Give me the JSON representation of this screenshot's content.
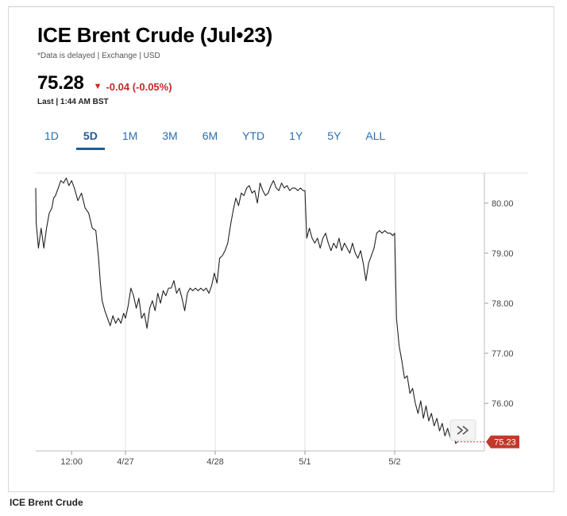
{
  "instrument": {
    "title": "ICE Brent Crude (Jul•23)",
    "meta": "*Data is delayed | Exchange | USD",
    "price": "75.28",
    "change": "-0.04 (-0.05%)",
    "change_color": "#c62828",
    "change_icon": "triangle-down-icon",
    "last_updated": "Last | 1:44 AM BST"
  },
  "tabs": [
    {
      "label": "1D",
      "active": false
    },
    {
      "label": "5D",
      "active": true
    },
    {
      "label": "1M",
      "active": false
    },
    {
      "label": "3M",
      "active": false
    },
    {
      "label": "6M",
      "active": false
    },
    {
      "label": "YTD",
      "active": false
    },
    {
      "label": "1Y",
      "active": false
    },
    {
      "label": "5Y",
      "active": false
    },
    {
      "label": "ALL",
      "active": false
    }
  ],
  "chart_data": {
    "type": "line",
    "title": "",
    "xlabel": "",
    "ylabel": "",
    "x_domain": [
      0,
      5
    ],
    "ylim": [
      75.05,
      80.6
    ],
    "y_ticks": [
      76.0,
      77.0,
      78.0,
      79.0,
      80.0
    ],
    "y_tick_labels": [
      "76.00",
      "77.00",
      "78.00",
      "79.00",
      "80.00"
    ],
    "x_ticks": [
      {
        "x": 0.4,
        "label": "12:00"
      },
      {
        "x": 1.0,
        "label": "4/27"
      },
      {
        "x": 2.0,
        "label": "4/28"
      },
      {
        "x": 3.0,
        "label": "5/1"
      },
      {
        "x": 4.0,
        "label": "5/2"
      }
    ],
    "grid": "vertical",
    "line_color": "#222222",
    "current_value": 75.23,
    "current_label": "75.23",
    "current_label_color": "#c0392b",
    "scroll_icon": "double-chevron-right-icon",
    "series": [
      {
        "points": [
          [
            0.0,
            80.3
          ],
          [
            0.005,
            79.6
          ],
          [
            0.03,
            79.1
          ],
          [
            0.06,
            79.5
          ],
          [
            0.09,
            79.1
          ],
          [
            0.12,
            79.5
          ],
          [
            0.15,
            79.8
          ],
          [
            0.18,
            79.9
          ],
          [
            0.2,
            80.1
          ],
          [
            0.22,
            80.15
          ],
          [
            0.25,
            80.3
          ],
          [
            0.28,
            80.45
          ],
          [
            0.31,
            80.4
          ],
          [
            0.34,
            80.5
          ],
          [
            0.37,
            80.35
          ],
          [
            0.4,
            80.45
          ],
          [
            0.43,
            80.3
          ],
          [
            0.47,
            80.05
          ],
          [
            0.51,
            80.2
          ],
          [
            0.55,
            79.9
          ],
          [
            0.59,
            79.8
          ],
          [
            0.63,
            79.5
          ],
          [
            0.67,
            79.45
          ],
          [
            0.7,
            78.9
          ],
          [
            0.72,
            78.4
          ],
          [
            0.74,
            78.05
          ],
          [
            0.77,
            77.85
          ],
          [
            0.8,
            77.7
          ],
          [
            0.83,
            77.55
          ],
          [
            0.86,
            77.75
          ],
          [
            0.89,
            77.6
          ],
          [
            0.92,
            77.7
          ],
          [
            0.95,
            77.6
          ],
          [
            0.98,
            77.8
          ],
          [
            1.0,
            77.7
          ],
          [
            1.03,
            77.95
          ],
          [
            1.06,
            78.3
          ],
          [
            1.09,
            78.15
          ],
          [
            1.12,
            77.9
          ],
          [
            1.15,
            78.1
          ],
          [
            1.18,
            77.7
          ],
          [
            1.21,
            77.8
          ],
          [
            1.24,
            77.5
          ],
          [
            1.27,
            77.9
          ],
          [
            1.3,
            78.05
          ],
          [
            1.33,
            77.85
          ],
          [
            1.36,
            78.2
          ],
          [
            1.39,
            78.0
          ],
          [
            1.42,
            78.25
          ],
          [
            1.45,
            78.15
          ],
          [
            1.48,
            78.3
          ],
          [
            1.51,
            78.3
          ],
          [
            1.54,
            78.45
          ],
          [
            1.57,
            78.2
          ],
          [
            1.6,
            78.3
          ],
          [
            1.63,
            78.1
          ],
          [
            1.66,
            77.85
          ],
          [
            1.69,
            78.2
          ],
          [
            1.72,
            78.3
          ],
          [
            1.75,
            78.25
          ],
          [
            1.78,
            78.3
          ],
          [
            1.81,
            78.25
          ],
          [
            1.84,
            78.3
          ],
          [
            1.87,
            78.25
          ],
          [
            1.9,
            78.3
          ],
          [
            1.93,
            78.2
          ],
          [
            1.96,
            78.35
          ],
          [
            1.99,
            78.6
          ],
          [
            2.02,
            78.4
          ],
          [
            2.05,
            78.9
          ],
          [
            2.08,
            78.95
          ],
          [
            2.11,
            79.05
          ],
          [
            2.14,
            79.2
          ],
          [
            2.17,
            79.55
          ],
          [
            2.2,
            79.85
          ],
          [
            2.23,
            80.1
          ],
          [
            2.26,
            79.95
          ],
          [
            2.29,
            80.2
          ],
          [
            2.32,
            80.15
          ],
          [
            2.35,
            80.3
          ],
          [
            2.38,
            80.35
          ],
          [
            2.41,
            80.2
          ],
          [
            2.44,
            80.25
          ],
          [
            2.47,
            80.0
          ],
          [
            2.5,
            80.4
          ],
          [
            2.53,
            80.25
          ],
          [
            2.56,
            80.15
          ],
          [
            2.59,
            80.2
          ],
          [
            2.62,
            80.35
          ],
          [
            2.65,
            80.45
          ],
          [
            2.68,
            80.3
          ],
          [
            2.71,
            80.25
          ],
          [
            2.74,
            80.4
          ],
          [
            2.77,
            80.3
          ],
          [
            2.8,
            80.35
          ],
          [
            2.83,
            80.25
          ],
          [
            2.86,
            80.3
          ],
          [
            2.89,
            80.3
          ],
          [
            2.92,
            80.25
          ],
          [
            2.95,
            80.3
          ],
          [
            2.98,
            80.25
          ],
          [
            3.0,
            80.25
          ],
          [
            3.02,
            79.3
          ],
          [
            3.05,
            79.5
          ],
          [
            3.08,
            79.3
          ],
          [
            3.11,
            79.2
          ],
          [
            3.14,
            79.3
          ],
          [
            3.17,
            79.1
          ],
          [
            3.2,
            79.3
          ],
          [
            3.23,
            79.4
          ],
          [
            3.26,
            79.2
          ],
          [
            3.29,
            79.05
          ],
          [
            3.32,
            79.2
          ],
          [
            3.35,
            79.1
          ],
          [
            3.38,
            79.3
          ],
          [
            3.41,
            79.05
          ],
          [
            3.44,
            79.2
          ],
          [
            3.47,
            79.1
          ],
          [
            3.5,
            79.0
          ],
          [
            3.53,
            79.2
          ],
          [
            3.56,
            79.0
          ],
          [
            3.59,
            78.9
          ],
          [
            3.62,
            79.05
          ],
          [
            3.65,
            78.8
          ],
          [
            3.68,
            78.45
          ],
          [
            3.71,
            78.8
          ],
          [
            3.74,
            78.95
          ],
          [
            3.77,
            79.1
          ],
          [
            3.8,
            79.4
          ],
          [
            3.83,
            79.45
          ],
          [
            3.86,
            79.4
          ],
          [
            3.89,
            79.45
          ],
          [
            3.92,
            79.4
          ],
          [
            3.95,
            79.4
          ],
          [
            3.98,
            79.35
          ],
          [
            4.0,
            79.4
          ],
          [
            4.02,
            77.7
          ],
          [
            4.05,
            77.15
          ],
          [
            4.08,
            76.85
          ],
          [
            4.11,
            76.5
          ],
          [
            4.14,
            76.55
          ],
          [
            4.17,
            76.2
          ],
          [
            4.2,
            76.3
          ],
          [
            4.23,
            76.0
          ],
          [
            4.26,
            75.8
          ],
          [
            4.29,
            76.05
          ],
          [
            4.32,
            75.7
          ],
          [
            4.35,
            75.95
          ],
          [
            4.38,
            75.65
          ],
          [
            4.41,
            75.8
          ],
          [
            4.44,
            75.55
          ],
          [
            4.47,
            75.7
          ],
          [
            4.5,
            75.45
          ],
          [
            4.53,
            75.6
          ],
          [
            4.56,
            75.35
          ],
          [
            4.59,
            75.5
          ],
          [
            4.62,
            75.3
          ],
          [
            4.65,
            75.45
          ],
          [
            4.68,
            75.2
          ],
          [
            4.7,
            75.23
          ]
        ]
      }
    ]
  },
  "footer": {
    "label": "ICE Brent Crude"
  }
}
